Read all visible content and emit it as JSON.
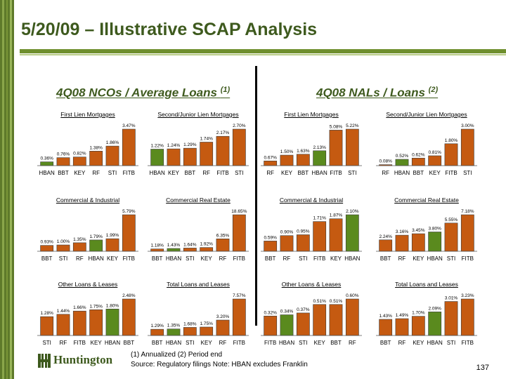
{
  "slide": {
    "title": "5/20/09 – Illustrative SCAP Analysis",
    "page_number": "137"
  },
  "sections": {
    "left": {
      "title": "4Q08 NCOs / Average Loans",
      "note": "(1)"
    },
    "right": {
      "title": "4Q08 NALs / Loans",
      "note": "(2)"
    }
  },
  "footnotes": {
    "line1": "(1)  Annualized    (2)  Period end",
    "line2": "Source: Regulatory filings       Note: HBAN excludes Franklin"
  },
  "logo": {
    "text": "Huntington"
  },
  "colors": {
    "bar": "#c55a11",
    "highlight": "#5a8a1e",
    "brand": "#3e5a1e"
  },
  "chart_data": [
    {
      "type": "bar",
      "title": "First Lien Mortgages",
      "categories": [
        "HBAN",
        "BBT",
        "KEY",
        "RF",
        "STI",
        "FITB"
      ],
      "values": [
        0.36,
        0.76,
        0.82,
        1.38,
        1.86,
        3.47
      ],
      "labels": [
        "0.36%",
        "0.76%",
        "0.82%",
        "1.38%",
        "1.86%",
        "3.47%"
      ],
      "highlight": "HBAN"
    },
    {
      "type": "bar",
      "title": "Second/Junior Lien Mortgages",
      "categories": [
        "HBAN",
        "KEY",
        "BBT",
        "RF",
        "FITB",
        "STI"
      ],
      "values": [
        1.22,
        1.24,
        1.29,
        1.74,
        2.17,
        2.7
      ],
      "labels": [
        "1.22%",
        "1.24%",
        "1.29%",
        "1.74%",
        "2.17%",
        "2.70%"
      ],
      "highlight": "HBAN"
    },
    {
      "type": "bar",
      "title": "First Lien Mortgages",
      "categories": [
        "RF",
        "KEY",
        "BBT",
        "HBAN",
        "FITB",
        "STI"
      ],
      "values": [
        0.67,
        1.5,
        1.63,
        2.13,
        5.08,
        5.22
      ],
      "labels": [
        "0.67%",
        "1.50%",
        "1.63%",
        "2.13%",
        "5.08%",
        "5.22%"
      ],
      "highlight": "HBAN"
    },
    {
      "type": "bar",
      "title": "Second/Junior Lien Mortgages",
      "categories": [
        "RF",
        "HBAN",
        "BBT",
        "KEY",
        "FITB",
        "STI"
      ],
      "values": [
        0.08,
        0.52,
        0.62,
        0.81,
        1.8,
        3.0
      ],
      "labels": [
        "0.08%",
        "0.52%",
        "0.62%",
        "0.81%",
        "1.80%",
        "3.00%"
      ],
      "highlight": "HBAN"
    },
    {
      "type": "bar",
      "title": "Commercial & Industrial",
      "categories": [
        "BBT",
        "STI",
        "RF",
        "HBAN",
        "KEY",
        "FITB"
      ],
      "values": [
        0.93,
        1.0,
        1.35,
        1.79,
        1.99,
        5.79
      ],
      "labels": [
        "0.93%",
        "1.00%",
        "1.35%",
        "1.79%",
        "1.99%",
        "5.79%"
      ],
      "highlight": "HBAN"
    },
    {
      "type": "bar",
      "title": "Commercial Real Estate",
      "categories": [
        "BBT",
        "HBAN",
        "STI",
        "KEY",
        "RF",
        "FITB"
      ],
      "values": [
        1.18,
        1.43,
        1.64,
        1.92,
        6.35,
        18.65
      ],
      "labels": [
        "1.18%",
        "1.43%",
        "1.64%",
        "1.92%",
        "6.35%",
        "18.65%"
      ],
      "highlight": "HBAN"
    },
    {
      "type": "bar",
      "title": "Commercial & Industrial",
      "categories": [
        "BBT",
        "RF",
        "STI",
        "FITB",
        "KEY",
        "HBAN"
      ],
      "values": [
        0.59,
        0.9,
        0.95,
        1.71,
        1.87,
        2.1
      ],
      "labels": [
        "0.59%",
        "0.90%",
        "0.95%",
        "1.71%",
        "1.87%",
        "2.10%"
      ],
      "highlight": "HBAN"
    },
    {
      "type": "bar",
      "title": "Commercial Real Estate",
      "categories": [
        "BBT",
        "RF",
        "KEY",
        "HBAN",
        "STI",
        "FITB"
      ],
      "values": [
        2.24,
        3.16,
        3.45,
        3.8,
        5.55,
        7.18
      ],
      "labels": [
        "2.24%",
        "3.16%",
        "3.45%",
        "3.80%",
        "5.55%",
        "7.18%"
      ],
      "highlight": "HBAN"
    },
    {
      "type": "bar",
      "title": "Other Loans & Leases",
      "categories": [
        "STI",
        "RF",
        "FITB",
        "KEY",
        "HBAN",
        "BBT"
      ],
      "values": [
        1.28,
        1.44,
        1.66,
        1.75,
        1.8,
        2.48
      ],
      "labels": [
        "1.28%",
        "1.44%",
        "1.66%",
        "1.75%",
        "1.80%",
        "2.48%"
      ],
      "highlight": "HBAN"
    },
    {
      "type": "bar",
      "title": "Total Loans and Leases",
      "categories": [
        "BBT",
        "HBAN",
        "STI",
        "KEY",
        "RF",
        "FITB"
      ],
      "values": [
        1.29,
        1.35,
        1.68,
        1.75,
        3.2,
        7.57
      ],
      "labels": [
        "1.29%",
        "1.35%",
        "1.68%",
        "1.75%",
        "3.20%",
        "7.57%"
      ],
      "highlight": "HBAN"
    },
    {
      "type": "bar",
      "title": "Other Loans & Leases",
      "categories": [
        "FITB",
        "HBAN",
        "STI",
        "KEY",
        "BBT",
        "RF"
      ],
      "values": [
        0.32,
        0.34,
        0.37,
        0.51,
        0.51,
        0.6
      ],
      "labels": [
        "0.32%",
        "0.34%",
        "0.37%",
        "0.51%",
        "0.51%",
        "0.60%"
      ],
      "highlight": "HBAN"
    },
    {
      "type": "bar",
      "title": "Total Loans and Leases",
      "categories": [
        "BBT",
        "RF",
        "KEY",
        "HBAN",
        "STI",
        "FITB"
      ],
      "values": [
        1.43,
        1.49,
        1.7,
        2.09,
        3.01,
        3.23
      ],
      "labels": [
        "1.43%",
        "1.49%",
        "1.70%",
        "2.09%",
        "3.01%",
        "3.23%"
      ],
      "highlight": "HBAN"
    }
  ]
}
